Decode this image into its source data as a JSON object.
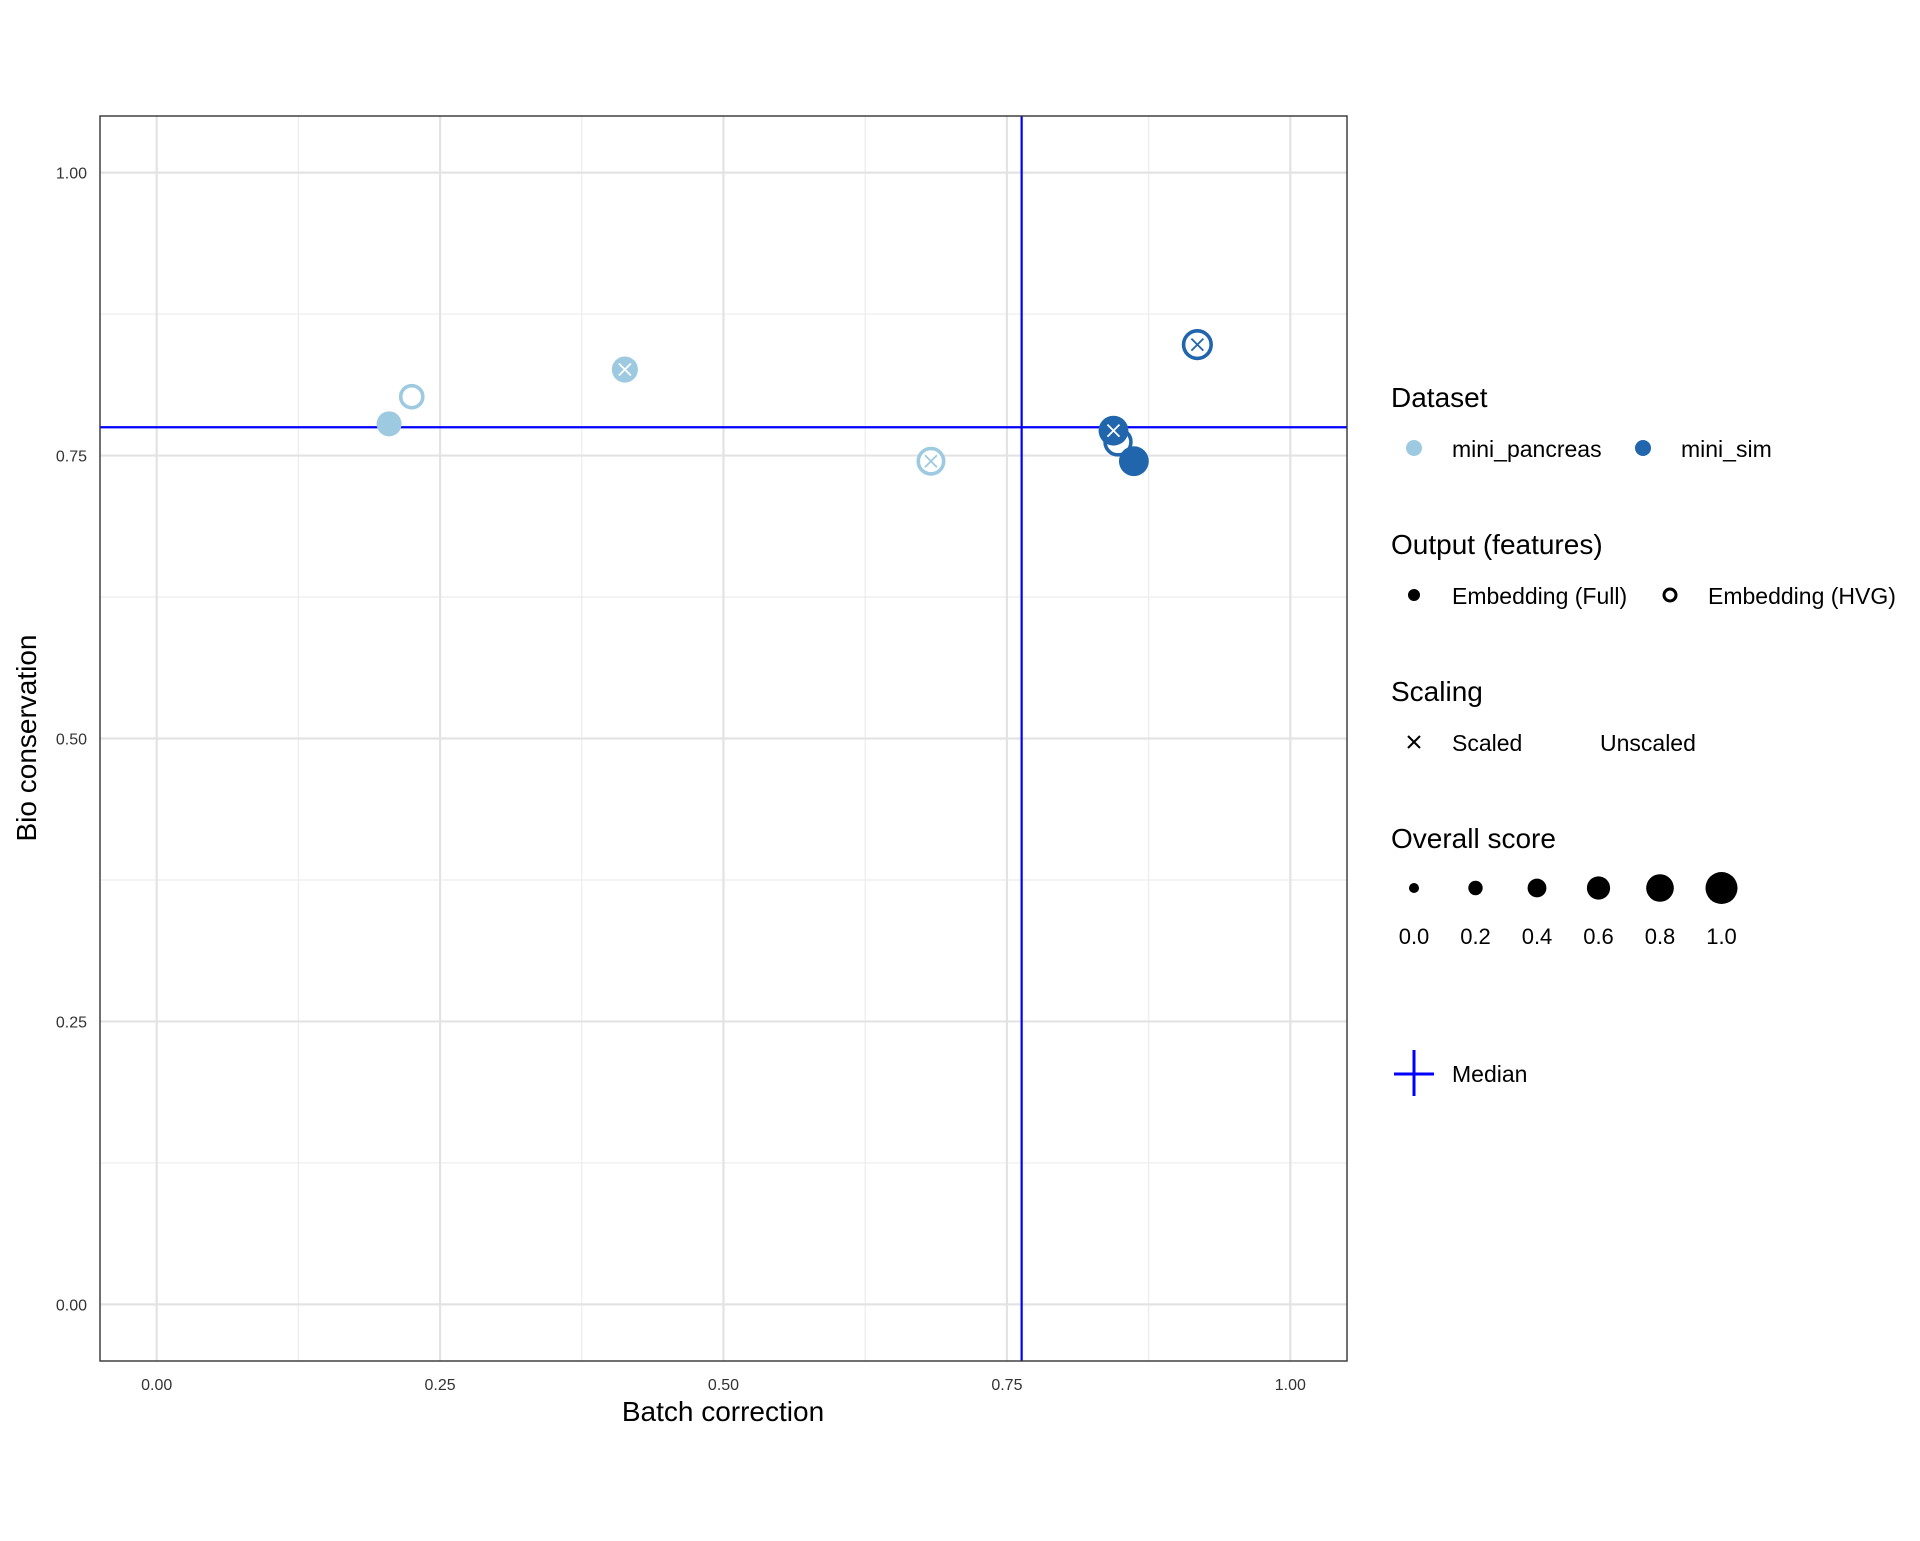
{
  "chart_data": {
    "type": "scatter",
    "title": "",
    "xlabel": "Batch correction",
    "ylabel": "Bio conservation",
    "xlim": [
      -0.05,
      1.05
    ],
    "ylim": [
      -0.05,
      1.05
    ],
    "x_ticks": [
      "0.00",
      "0.25",
      "0.50",
      "0.75",
      "1.00"
    ],
    "y_ticks": [
      "0.00",
      "0.25",
      "0.50",
      "0.75",
      "1.00"
    ],
    "grid": true,
    "median": {
      "x": 0.763,
      "y": 0.775,
      "color": "#0000ff"
    },
    "colors": {
      "mini_pancreas": "#9ecae1",
      "mini_sim": "#2166ac"
    },
    "points": [
      {
        "dataset": "mini_pancreas",
        "output": "Embedding (Full)",
        "scaling": "Unscaled",
        "x": 0.205,
        "y": 0.778,
        "score": 0.5
      },
      {
        "dataset": "mini_pancreas",
        "output": "Embedding (HVG)",
        "scaling": "Unscaled",
        "x": 0.225,
        "y": 0.802,
        "score": 0.55
      },
      {
        "dataset": "mini_pancreas",
        "output": "Embedding (Full)",
        "scaling": "Scaled",
        "x": 0.413,
        "y": 0.826,
        "score": 0.55
      },
      {
        "dataset": "mini_pancreas",
        "output": "Embedding (HVG)",
        "scaling": "Scaled",
        "x": 0.683,
        "y": 0.745,
        "score": 0.7
      },
      {
        "dataset": "mini_sim",
        "output": "Embedding (HVG)",
        "scaling": "Unscaled",
        "x": 0.848,
        "y": 0.762,
        "score": 0.72
      },
      {
        "dataset": "mini_sim",
        "output": "Embedding (Full)",
        "scaling": "Unscaled",
        "x": 0.862,
        "y": 0.745,
        "score": 0.72
      },
      {
        "dataset": "mini_sim",
        "output": "Embedding (Full)",
        "scaling": "Scaled",
        "x": 0.844,
        "y": 0.772,
        "score": 0.72
      },
      {
        "dataset": "mini_sim",
        "output": "Embedding (HVG)",
        "scaling": "Scaled",
        "x": 0.918,
        "y": 0.848,
        "score": 0.8
      }
    ],
    "legend": {
      "placement": "right",
      "dataset": {
        "title": "Dataset",
        "items": [
          "mini_pancreas",
          "mini_sim"
        ]
      },
      "output": {
        "title": "Output (features)",
        "items": [
          "Embedding (Full)",
          "Embedding (HVG)"
        ]
      },
      "scaling": {
        "title": "Scaling",
        "items": [
          "Scaled",
          "Unscaled"
        ]
      },
      "score": {
        "title": "Overall score",
        "items": [
          "0.0",
          "0.2",
          "0.4",
          "0.6",
          "0.8",
          "1.0"
        ],
        "values": [
          0.0,
          0.2,
          0.4,
          0.6,
          0.8,
          1.0
        ]
      },
      "median": {
        "label": "Median"
      }
    }
  }
}
